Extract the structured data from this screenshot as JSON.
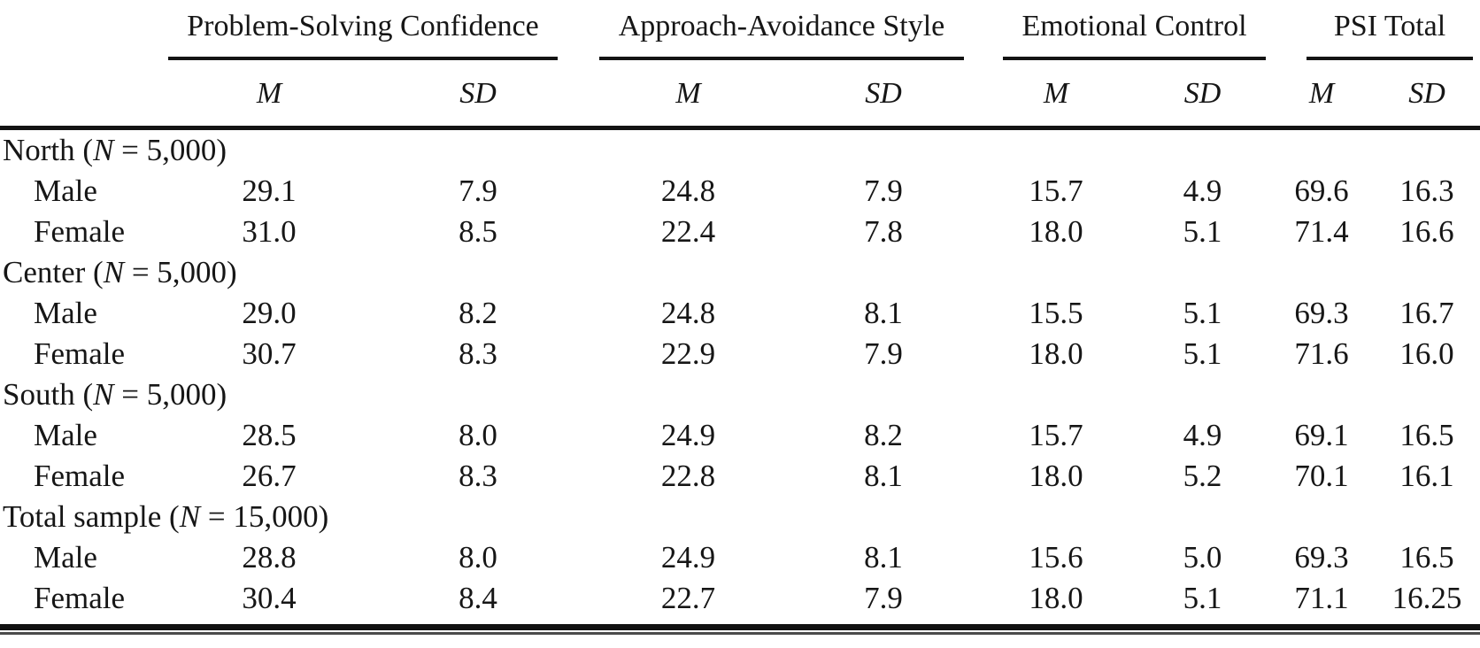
{
  "table": {
    "column_groups": [
      {
        "label": "Problem-Solving Confidence",
        "columns": [
          "M",
          "SD"
        ]
      },
      {
        "label": "Approach-Avoidance Style",
        "columns": [
          "M",
          "SD"
        ]
      },
      {
        "label": "Emotional Control",
        "columns": [
          "M",
          "SD"
        ]
      },
      {
        "label": "PSI Total",
        "columns": [
          "M",
          "SD"
        ]
      }
    ],
    "rows": [
      {
        "type": "group",
        "label": "North (N = 5,000)"
      },
      {
        "type": "data",
        "label": "Male",
        "values": [
          "29.1",
          "7.9",
          "24.8",
          "7.9",
          "15.7",
          "4.9",
          "69.6",
          "16.3"
        ]
      },
      {
        "type": "data",
        "label": "Female",
        "values": [
          "31.0",
          "8.5",
          "22.4",
          "7.8",
          "18.0",
          "5.1",
          "71.4",
          "16.6"
        ]
      },
      {
        "type": "group",
        "label": "Center (N = 5,000)"
      },
      {
        "type": "data",
        "label": "Male",
        "values": [
          "29.0",
          "8.2",
          "24.8",
          "8.1",
          "15.5",
          "5.1",
          "69.3",
          "16.7"
        ]
      },
      {
        "type": "data",
        "label": "Female",
        "values": [
          "30.7",
          "8.3",
          "22.9",
          "7.9",
          "18.0",
          "5.1",
          "71.6",
          "16.0"
        ]
      },
      {
        "type": "group",
        "label": "South (N = 5,000)"
      },
      {
        "type": "data",
        "label": "Male",
        "values": [
          "28.5",
          "8.0",
          "24.9",
          "8.2",
          "15.7",
          "4.9",
          "69.1",
          "16.5"
        ]
      },
      {
        "type": "data",
        "label": "Female",
        "values": [
          "26.7",
          "8.3",
          "22.8",
          "8.1",
          "18.0",
          "5.2",
          "70.1",
          "16.1"
        ]
      },
      {
        "type": "group",
        "label": "Total sample (N = 15,000)"
      },
      {
        "type": "data",
        "label": "Male",
        "values": [
          "28.8",
          "8.0",
          "24.9",
          "8.1",
          "15.6",
          "5.0",
          "69.3",
          "16.5"
        ]
      },
      {
        "type": "data",
        "label": "Female",
        "values": [
          "30.4",
          "8.4",
          "22.7",
          "7.9",
          "18.0",
          "5.1",
          "71.1",
          "16.25"
        ]
      }
    ]
  }
}
